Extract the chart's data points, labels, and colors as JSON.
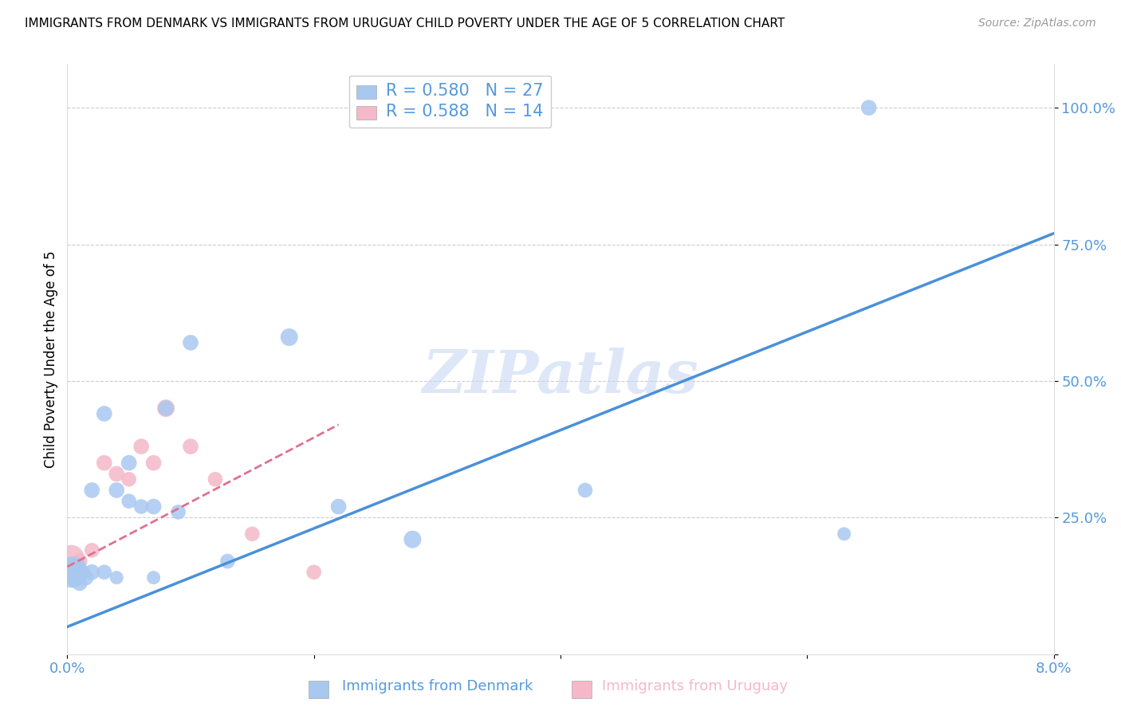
{
  "title": "IMMIGRANTS FROM DENMARK VS IMMIGRANTS FROM URUGUAY CHILD POVERTY UNDER THE AGE OF 5 CORRELATION CHART",
  "source": "Source: ZipAtlas.com",
  "ylabel": "Child Poverty Under the Age of 5",
  "xlim": [
    0.0,
    0.08
  ],
  "ylim": [
    0.0,
    1.08
  ],
  "denmark_R": "0.580",
  "denmark_N": "27",
  "uruguay_R": "0.588",
  "uruguay_N": "14",
  "denmark_color": "#a8c8f0",
  "uruguay_color": "#f4b8c8",
  "denmark_line_color": "#4a90d9",
  "uruguay_line_color": "#e07090",
  "watermark": "ZIPatlas",
  "watermark_color": "#c8d8f4",
  "dk_x": [
    0.0004,
    0.0006,
    0.0008,
    0.001,
    0.0012,
    0.0015,
    0.002,
    0.002,
    0.003,
    0.003,
    0.004,
    0.004,
    0.005,
    0.005,
    0.006,
    0.007,
    0.007,
    0.008,
    0.009,
    0.01,
    0.013,
    0.018,
    0.022,
    0.028,
    0.042,
    0.063,
    0.065
  ],
  "dk_y": [
    0.15,
    0.14,
    0.16,
    0.13,
    0.15,
    0.14,
    0.15,
    0.3,
    0.15,
    0.44,
    0.14,
    0.3,
    0.35,
    0.28,
    0.27,
    0.27,
    0.14,
    0.45,
    0.26,
    0.57,
    0.17,
    0.58,
    0.27,
    0.21,
    0.3,
    0.22,
    1.0
  ],
  "dk_s": [
    800,
    300,
    250,
    200,
    200,
    200,
    200,
    200,
    180,
    200,
    150,
    200,
    200,
    180,
    180,
    200,
    150,
    200,
    180,
    200,
    180,
    250,
    200,
    250,
    180,
    150,
    200
  ],
  "uy_x": [
    0.0003,
    0.0005,
    0.001,
    0.002,
    0.003,
    0.004,
    0.005,
    0.006,
    0.007,
    0.008,
    0.01,
    0.012,
    0.015,
    0.02
  ],
  "uy_y": [
    0.175,
    0.16,
    0.17,
    0.19,
    0.35,
    0.33,
    0.32,
    0.38,
    0.35,
    0.45,
    0.38,
    0.32,
    0.22,
    0.15
  ],
  "uy_s": [
    600,
    200,
    200,
    180,
    200,
    200,
    180,
    200,
    200,
    250,
    200,
    180,
    180,
    180
  ],
  "dk_line_x0": 0.0,
  "dk_line_y0": 0.05,
  "dk_line_x1": 0.08,
  "dk_line_y1": 0.77,
  "uy_line_x0": 0.0,
  "uy_line_y0": 0.16,
  "uy_line_x1": 0.022,
  "uy_line_y1": 0.42
}
